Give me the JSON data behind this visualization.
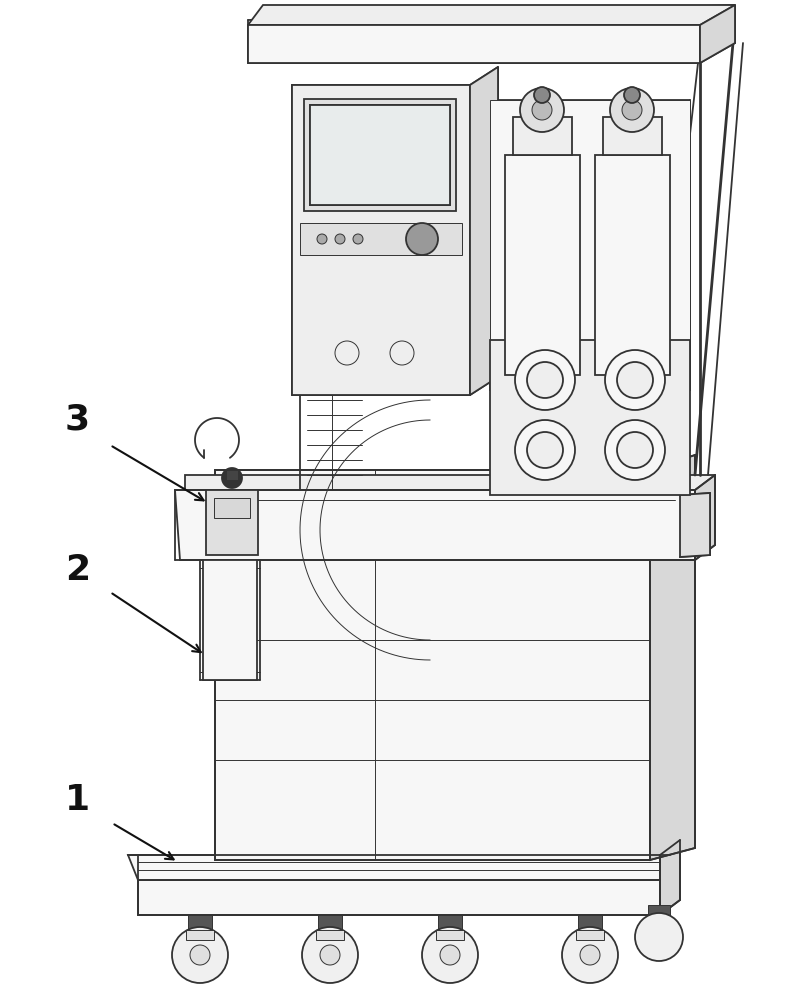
{
  "bg_color": "#ffffff",
  "line_color": "#333333",
  "face_color_light": "#f7f7f7",
  "face_color_mid": "#eeeeee",
  "face_color_dark": "#e0e0e0",
  "face_color_side": "#d8d8d8",
  "label_color": "#111111",
  "label_fontsize": 26,
  "arrow_color": "#111111",
  "lw_main": 1.3,
  "lw_thin": 0.7,
  "lw_thick": 2.0
}
